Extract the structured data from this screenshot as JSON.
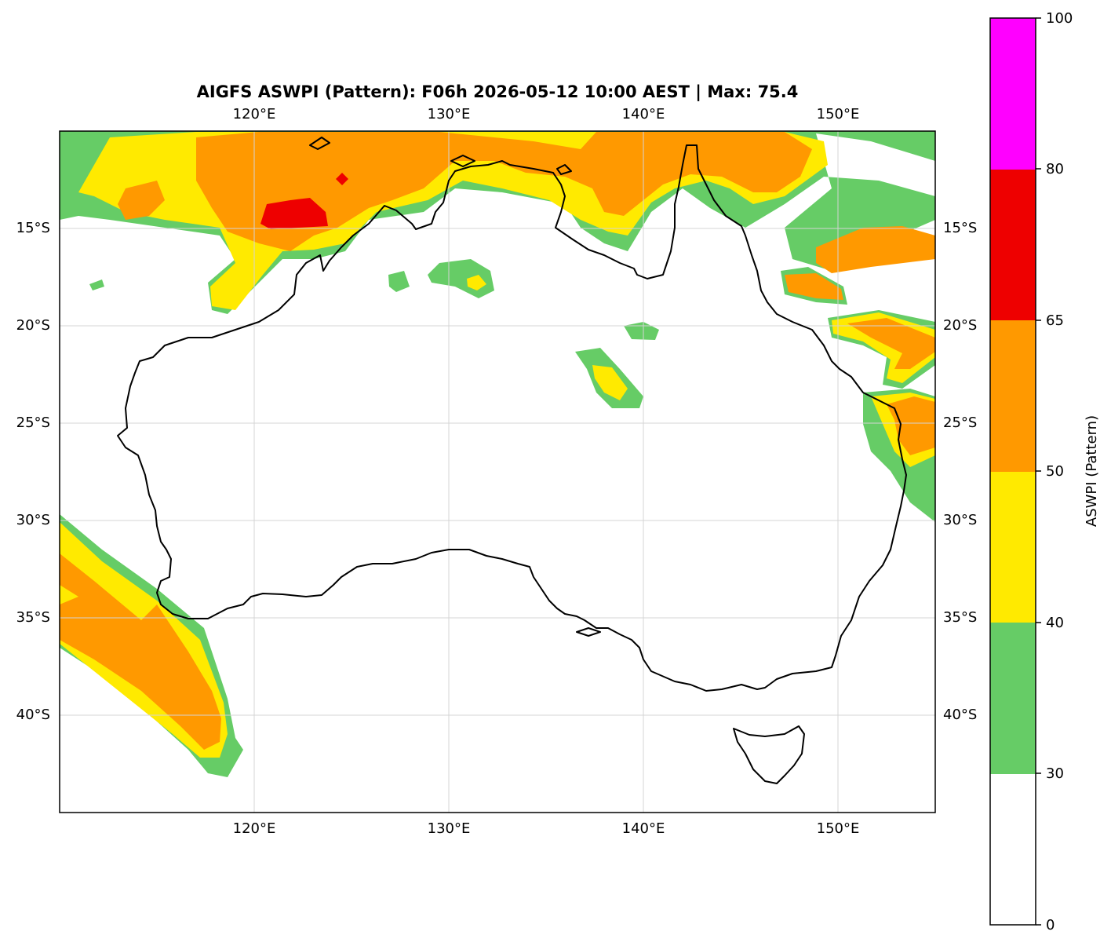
{
  "title": "AIGFS ASWPI (Pattern): F06h 2026-05-12 10:00 AEST | Max: 75.4",
  "map": {
    "lon_range": [
      110,
      155
    ],
    "lat_range": [
      -45,
      -10
    ],
    "lon_ticks": [
      {
        "value": 120,
        "label": "120°E"
      },
      {
        "value": 130,
        "label": "130°E"
      },
      {
        "value": 140,
        "label": "140°E"
      },
      {
        "value": 150,
        "label": "150°E"
      }
    ],
    "lat_ticks": [
      {
        "value": -15,
        "label": "15°S"
      },
      {
        "value": -20,
        "label": "20°S"
      },
      {
        "value": -25,
        "label": "25°S"
      },
      {
        "value": -30,
        "label": "30°S"
      },
      {
        "value": -35,
        "label": "35°S"
      },
      {
        "value": -40,
        "label": "40°S"
      }
    ],
    "gridlines": true
  },
  "colorbar": {
    "label": "ASWPI (Pattern)",
    "levels": [
      0,
      30,
      40,
      50,
      65,
      80,
      100
    ],
    "tick_labels": [
      "0",
      "30",
      "40",
      "50",
      "65",
      "80",
      "100"
    ],
    "colors": [
      "#ffffff",
      "#66cc66",
      "#ffea00",
      "#ff9900",
      "#ee0000",
      "#ff00ff"
    ]
  },
  "colors": {
    "c30": "#66cc66",
    "c40": "#ffea00",
    "c50": "#ff9900",
    "c65": "#ee0000"
  }
}
